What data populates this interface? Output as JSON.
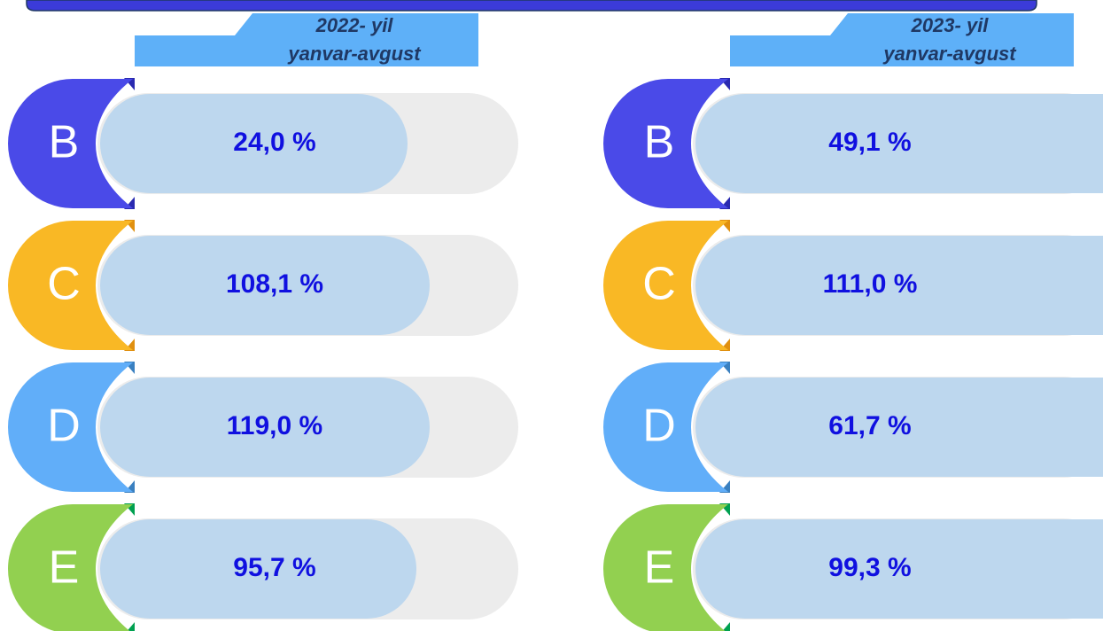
{
  "panels": [
    {
      "header": [
        "2022- yil",
        "yanvar-avgust"
      ],
      "rows": [
        {
          "letter": "B",
          "value": "24,0 %"
        },
        {
          "letter": "C",
          "value": "108,1 %"
        },
        {
          "letter": "D",
          "value": "119,0 %"
        },
        {
          "letter": "E",
          "value": "95,7 %"
        }
      ]
    },
    {
      "header": [
        "2023- yil",
        "yanvar-avgust"
      ],
      "rows": [
        {
          "letter": "B",
          "value": "49,1 %"
        },
        {
          "letter": "C",
          "value": "111,0 %"
        },
        {
          "letter": "D",
          "value": "61,7 %"
        },
        {
          "letter": "E",
          "value": "99,3 %"
        }
      ]
    }
  ]
}
